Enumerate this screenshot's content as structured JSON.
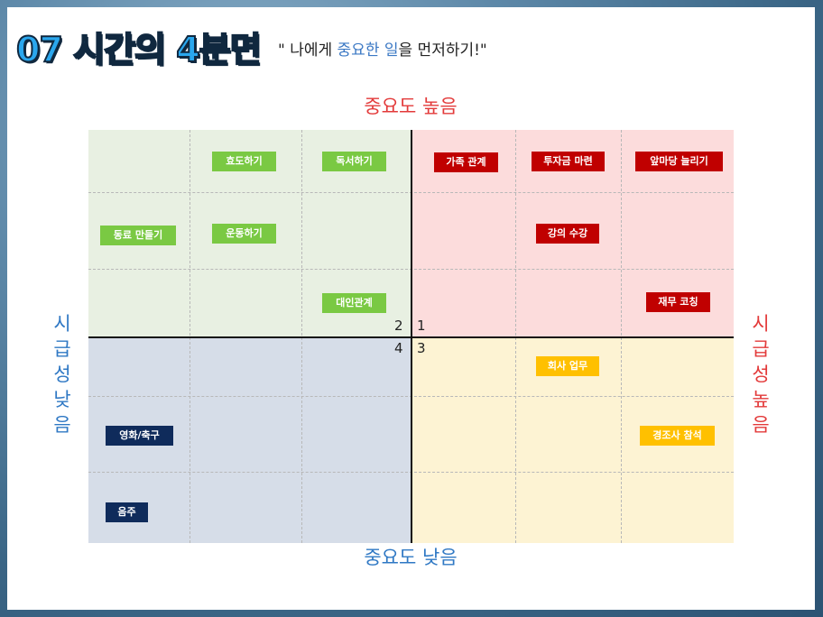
{
  "header": {
    "title": "07 시간의 4분면",
    "quote_open": "\" 나에게 ",
    "quote_hl1": "중요한 일",
    "quote_close": "을 먼저하기!\""
  },
  "axes": {
    "top": "중요도 높음",
    "bottom": "중요도 낮음",
    "left": "시급성 낮음",
    "right": "시급성 높음"
  },
  "quadrants": {
    "q1": "1",
    "q2": "2",
    "q3": "3",
    "q4": "4"
  },
  "tags": {
    "filial": "효도하기",
    "reading": "독서하기",
    "family": "가족 관계",
    "invest": "투자금 마련",
    "savings": "앞마당 늘리기",
    "colleagues": "동료 만들기",
    "exercise": "운동하기",
    "lecture": "강의 수강",
    "relations": "대인관계",
    "coaching": "재무 코칭",
    "work": "회사 업무",
    "movie": "영화/축구",
    "events": "경조사 참석",
    "drinking": "음주"
  },
  "colors": {
    "green": "#7ac943",
    "red": "#c00000",
    "yellow": "#ffc000",
    "navy": "#0f2b5b",
    "title": "#2aa7ee"
  }
}
